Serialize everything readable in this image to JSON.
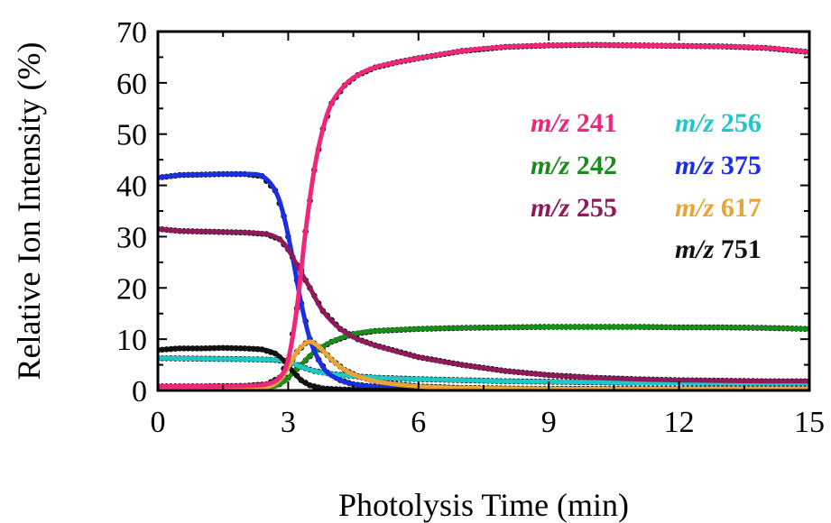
{
  "chart_data": {
    "type": "line",
    "xlabel": "Photolysis Time (min)",
    "ylabel": "Relative Ion Intensity (%)",
    "xlim": [
      0,
      15
    ],
    "ylim": [
      0,
      70
    ],
    "x_ticks": [
      "0",
      "3",
      "6",
      "9",
      "12",
      "15"
    ],
    "y_ticks": [
      "0",
      "10",
      "20",
      "30",
      "40",
      "50",
      "60",
      "70"
    ],
    "grid": false,
    "legend_placement": "upper-right inside plot",
    "markers": "black filled circles (data) with colored fit lines",
    "series": [
      {
        "name_prefix": "m/z",
        "name_value": "241",
        "color": "#f0267a",
        "x": [
          0,
          1,
          2,
          2.5,
          2.8,
          3.0,
          3.2,
          3.4,
          3.6,
          3.8,
          4.0,
          4.3,
          4.6,
          5.0,
          5.5,
          6,
          7,
          8,
          9,
          10,
          11,
          12,
          13,
          14,
          15
        ],
        "y": [
          0.8,
          0.8,
          0.9,
          1.2,
          2.5,
          6,
          16,
          31,
          43,
          51,
          56,
          59.5,
          61.5,
          63,
          64,
          64.8,
          66.2,
          67,
          67.3,
          67.4,
          67.3,
          67.2,
          67.1,
          66.8,
          66
        ]
      },
      {
        "name_prefix": "m/z",
        "name_value": "242",
        "color": "#1a8c1a",
        "x": [
          0,
          1,
          2,
          2.5,
          2.8,
          3.0,
          3.3,
          3.6,
          4.0,
          4.5,
          5,
          6,
          7,
          8,
          9,
          10,
          11,
          12,
          13,
          14,
          15
        ],
        "y": [
          0.3,
          0.3,
          0.3,
          0.5,
          1.2,
          2.5,
          5,
          7.5,
          9.5,
          11,
          11.6,
          12,
          12.2,
          12.3,
          12.4,
          12.4,
          12.4,
          12.3,
          12.3,
          12.2,
          12
        ]
      },
      {
        "name_prefix": "m/z",
        "name_value": "255",
        "color": "#8e1a5a",
        "x": [
          0,
          0.5,
          1,
          2,
          2.5,
          2.8,
          3.0,
          3.2,
          3.5,
          3.8,
          4.2,
          4.6,
          5,
          6,
          7,
          8,
          9,
          10,
          11,
          12,
          13,
          14,
          15
        ],
        "y": [
          31.5,
          31.1,
          31,
          30.8,
          30.5,
          29.5,
          27.5,
          24.5,
          20,
          15.5,
          12,
          10,
          8.8,
          6.5,
          5,
          3.8,
          3,
          2.5,
          2.2,
          2,
          1.9,
          1.8,
          1.8
        ]
      },
      {
        "name_prefix": "m/z",
        "name_value": "256",
        "color": "#1fc7c7",
        "x": [
          0,
          1,
          2,
          2.6,
          2.9,
          3.1,
          3.3,
          3.6,
          4,
          4.5,
          5,
          6,
          7,
          8,
          9,
          10,
          11,
          12,
          13,
          14,
          15
        ],
        "y": [
          6.3,
          6.2,
          6.1,
          6.0,
          5.8,
          5.3,
          4.6,
          3.8,
          3.2,
          2.8,
          2.5,
          2.2,
          2.0,
          1.8,
          1.7,
          1.6,
          1.5,
          1.5,
          1.4,
          1.4,
          1.4
        ]
      },
      {
        "name_prefix": "m/z",
        "name_value": "375",
        "color": "#1a2ee6",
        "x": [
          0,
          0.5,
          1,
          1.5,
          2,
          2.4,
          2.7,
          2.9,
          3.1,
          3.3,
          3.5,
          3.7,
          3.9,
          4.2,
          4.5,
          5,
          6,
          7,
          8,
          9,
          10,
          11,
          12,
          13,
          14,
          15
        ],
        "y": [
          41.5,
          42,
          42.1,
          42.2,
          42.2,
          41.8,
          39,
          34,
          26,
          17,
          10,
          6,
          3.5,
          2,
          1.2,
          0.7,
          0.4,
          0.3,
          0.3,
          0.3,
          0.3,
          0.3,
          0.3,
          0.3,
          0.3,
          0.3
        ]
      },
      {
        "name_prefix": "m/z",
        "name_value": "617",
        "color": "#e8a535",
        "x": [
          0,
          1,
          2,
          2.5,
          2.8,
          3.0,
          3.2,
          3.4,
          3.5,
          3.6,
          3.8,
          4.0,
          4.3,
          4.6,
          5,
          5.5,
          6,
          7,
          8,
          9,
          10,
          11,
          12,
          13,
          14,
          15
        ],
        "y": [
          0.1,
          0.1,
          0.2,
          0.6,
          2.0,
          4.5,
          7.5,
          9.2,
          9.5,
          9.2,
          7.8,
          6.0,
          4.0,
          2.8,
          1.8,
          1.2,
          0.8,
          0.5,
          0.4,
          0.3,
          0.3,
          0.3,
          0.3,
          0.3,
          0.3,
          0.3
        ]
      },
      {
        "name_prefix": "m/z",
        "name_value": "751",
        "color": "#111111",
        "x": [
          0,
          0.5,
          1,
          1.5,
          2,
          2.4,
          2.7,
          2.9,
          3.1,
          3.3,
          3.5,
          3.8,
          4.2,
          5,
          6,
          7,
          8,
          9,
          10,
          11,
          12,
          13,
          14,
          15
        ],
        "y": [
          7.9,
          8.2,
          8.2,
          8.3,
          8.2,
          8.0,
          7.2,
          5.8,
          3.8,
          2.0,
          1.0,
          0.4,
          0.2,
          0.1,
          0.1,
          0.1,
          0.1,
          0.1,
          0.1,
          0.1,
          0.1,
          0.1,
          0.1,
          0.1
        ]
      }
    ],
    "legend_columns": [
      [
        "241",
        "242",
        "255"
      ],
      [
        "256",
        "375",
        "617",
        "751"
      ]
    ]
  }
}
